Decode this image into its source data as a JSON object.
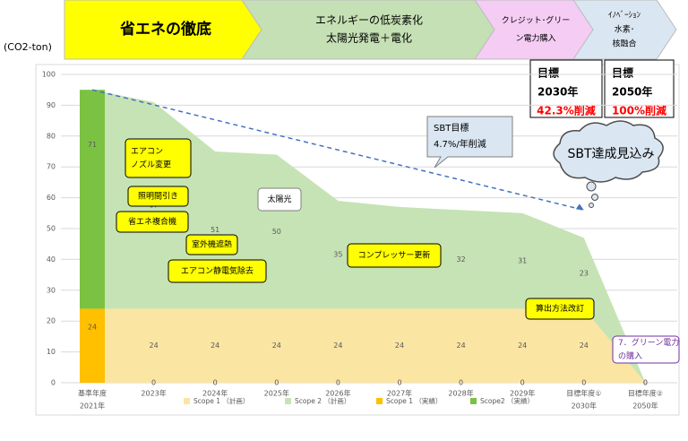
{
  "banners": [
    {
      "lines": [
        "省エネの徹底"
      ],
      "color": "#ffff00"
    },
    {
      "lines": [
        "エネルギーの低炭素化",
        "太陽光発電＋電化"
      ],
      "color": "#c5e0b4"
    },
    {
      "lines": [
        "クレジット･グリー",
        "ン電力購入"
      ],
      "color": "#f4ccf4"
    },
    {
      "lines": [
        "ｲﾉﾍﾞｰｼｮﾝ",
        "水素･",
        "核融合"
      ],
      "color": "#dae6f2"
    }
  ],
  "targets": [
    {
      "lines": [
        "目標",
        "2030年",
        "42.3%削減"
      ]
    },
    {
      "lines": [
        "目標",
        "2050年",
        "100%削減"
      ]
    }
  ],
  "cloud": "SBT達成見込み",
  "callout": [
    "SBT目標",
    "4.7%/年削減"
  ],
  "chart_data": {
    "type": "area",
    "y_label": "(CO2-ton)",
    "categories": [
      [
        "基準年度",
        "2021年"
      ],
      [
        "2023年"
      ],
      [
        "2024年"
      ],
      [
        "2025年"
      ],
      [
        "2026年"
      ],
      [
        "2027年"
      ],
      [
        "2028年"
      ],
      [
        "2029年"
      ],
      [
        "目標年度①",
        "2030年"
      ],
      [
        "目標年度②",
        "2050年"
      ]
    ],
    "ylim": [
      0,
      100
    ],
    "yticks": [
      0,
      10,
      20,
      30,
      40,
      50,
      60,
      70,
      80,
      90,
      100
    ],
    "grid": true,
    "series": [
      {
        "name": "Scope 1 （計画）",
        "color": "#fbe5a3",
        "style": "area",
        "values": [
          24,
          24,
          24,
          24,
          24,
          24,
          24,
          24,
          24,
          0
        ]
      },
      {
        "name": "Scope 2 （計画）",
        "color": "#c6e3b5",
        "style": "area",
        "values": [
          71,
          67,
          51,
          50,
          35,
          33,
          32,
          31,
          23,
          0
        ]
      },
      {
        "name": "Scope 1 （実績）",
        "color": "#ffc000",
        "style": "bar",
        "values": [
          24,
          0,
          0,
          0,
          0,
          0,
          0,
          0,
          0,
          null
        ]
      },
      {
        "name": "Scope2 （実績）",
        "color": "#7cc242",
        "style": "bar",
        "values": [
          71,
          null,
          null,
          null,
          null,
          null,
          null,
          null,
          null,
          null
        ]
      }
    ],
    "trend": {
      "start": 95,
      "end": 56
    },
    "annotations": [
      [
        "エアコン",
        "ノズル変更"
      ],
      [
        "照明間引き"
      ],
      [
        "省エネ複合機"
      ],
      [
        "室外機遮熱"
      ],
      [
        "エアコン静電気除去"
      ],
      [
        "太陽光"
      ],
      [
        "コンプレッサー更新"
      ],
      [
        "算出方法改訂"
      ],
      [
        "7．グリーン電力",
        "の購入"
      ]
    ]
  }
}
